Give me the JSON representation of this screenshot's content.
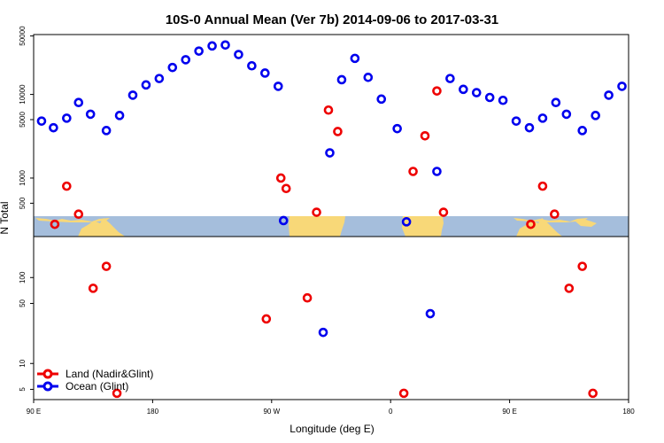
{
  "chart_data": {
    "type": "scatter",
    "title": "10S-0 Annual Mean (Ver 7b)   2014-09-06 to 2017-03-31",
    "xlabel": "Longitude (deg E)",
    "ylabel": "N Total",
    "x_ticks": [
      "90 E",
      "180",
      "90 W",
      "0",
      "90 E",
      "180"
    ],
    "y_ticks_top": [
      "500",
      "1000",
      "5000",
      "10000",
      "50000"
    ],
    "y_ticks_bottom": [
      "5",
      "10",
      "50",
      "100"
    ],
    "legend": [
      {
        "label": "Land (Nadir&Glint)",
        "color": "#ee0000"
      },
      {
        "label": "Ocean (Glint)",
        "color": "#0000ee"
      }
    ],
    "series": [
      {
        "name": "Land (Nadir&Glint)",
        "color": "#ee0000",
        "points": [
          {
            "lon": 106,
            "n": 280
          },
          {
            "lon": 115,
            "n": 800
          },
          {
            "lon": 124,
            "n": 370
          },
          {
            "lon": 135,
            "n": 75
          },
          {
            "lon": 145,
            "n": 135
          },
          {
            "lon": 153,
            "n": 4.5
          },
          {
            "lon": 266,
            "n": 33
          },
          {
            "lon": 277,
            "n": 1000
          },
          {
            "lon": 281,
            "n": 750
          },
          {
            "lon": 297,
            "n": 58
          },
          {
            "lon": 304,
            "n": 390
          },
          {
            "lon": 313,
            "n": 6500
          },
          {
            "lon": 320,
            "n": 3600
          },
          {
            "lon": 370,
            "n": 4.5
          },
          {
            "lon": 377,
            "n": 1200
          },
          {
            "lon": 386,
            "n": 3200
          },
          {
            "lon": 395,
            "n": 11000
          },
          {
            "lon": 400,
            "n": 390
          },
          {
            "lon": 466,
            "n": 280
          },
          {
            "lon": 475,
            "n": 800
          },
          {
            "lon": 484,
            "n": 370
          },
          {
            "lon": 495,
            "n": 75
          },
          {
            "lon": 505,
            "n": 135
          },
          {
            "lon": 513,
            "n": 4.5
          }
        ]
      },
      {
        "name": "Ocean (Glint)",
        "color": "#0000ee",
        "points": [
          {
            "lon": 96,
            "n": 4800
          },
          {
            "lon": 105,
            "n": 4000
          },
          {
            "lon": 115,
            "n": 5200
          },
          {
            "lon": 124,
            "n": 8000
          },
          {
            "lon": 133,
            "n": 5800
          },
          {
            "lon": 145,
            "n": 3700
          },
          {
            "lon": 155,
            "n": 5600
          },
          {
            "lon": 165,
            "n": 9800
          },
          {
            "lon": 175,
            "n": 13000
          },
          {
            "lon": 185,
            "n": 15500
          },
          {
            "lon": 195,
            "n": 21000
          },
          {
            "lon": 205,
            "n": 26000
          },
          {
            "lon": 215,
            "n": 33000
          },
          {
            "lon": 225,
            "n": 38000
          },
          {
            "lon": 235,
            "n": 39000
          },
          {
            "lon": 245,
            "n": 30000
          },
          {
            "lon": 255,
            "n": 22000
          },
          {
            "lon": 265,
            "n": 18000
          },
          {
            "lon": 275,
            "n": 12500
          },
          {
            "lon": 279,
            "n": 310
          },
          {
            "lon": 309,
            "n": 23
          },
          {
            "lon": 314,
            "n": 2000
          },
          {
            "lon": 323,
            "n": 15000
          },
          {
            "lon": 333,
            "n": 27000
          },
          {
            "lon": 343,
            "n": 16000
          },
          {
            "lon": 353,
            "n": 8800
          },
          {
            "lon": 365,
            "n": 3900
          },
          {
            "lon": 372,
            "n": 300
          },
          {
            "lon": 390,
            "n": 38
          },
          {
            "lon": 395,
            "n": 1200
          },
          {
            "lon": 405,
            "n": 15500
          },
          {
            "lon": 415,
            "n": 11500
          },
          {
            "lon": 425,
            "n": 10500
          },
          {
            "lon": 435,
            "n": 9200
          },
          {
            "lon": 445,
            "n": 8500
          },
          {
            "lon": 455,
            "n": 4800
          },
          {
            "lon": 465,
            "n": 4000
          },
          {
            "lon": 475,
            "n": 5200
          },
          {
            "lon": 485,
            "n": 8000
          },
          {
            "lon": 493,
            "n": 5800
          },
          {
            "lon": 505,
            "n": 3700
          },
          {
            "lon": 515,
            "n": 5600
          },
          {
            "lon": 525,
            "n": 9800
          },
          {
            "lon": 535,
            "n": 12500
          }
        ]
      }
    ],
    "x_range_lon": [
      90,
      540
    ],
    "y_range_top": [
      350,
      52000
    ],
    "y_range_bottom": [
      3.8,
      300
    ],
    "log_scale": true,
    "grid": false,
    "legend_placement": "bottom-left",
    "colors": {
      "land": "#ee0000",
      "ocean": "#0000ee",
      "map_ocean": "#a5bedc",
      "map_land": "#f8d878"
    }
  }
}
